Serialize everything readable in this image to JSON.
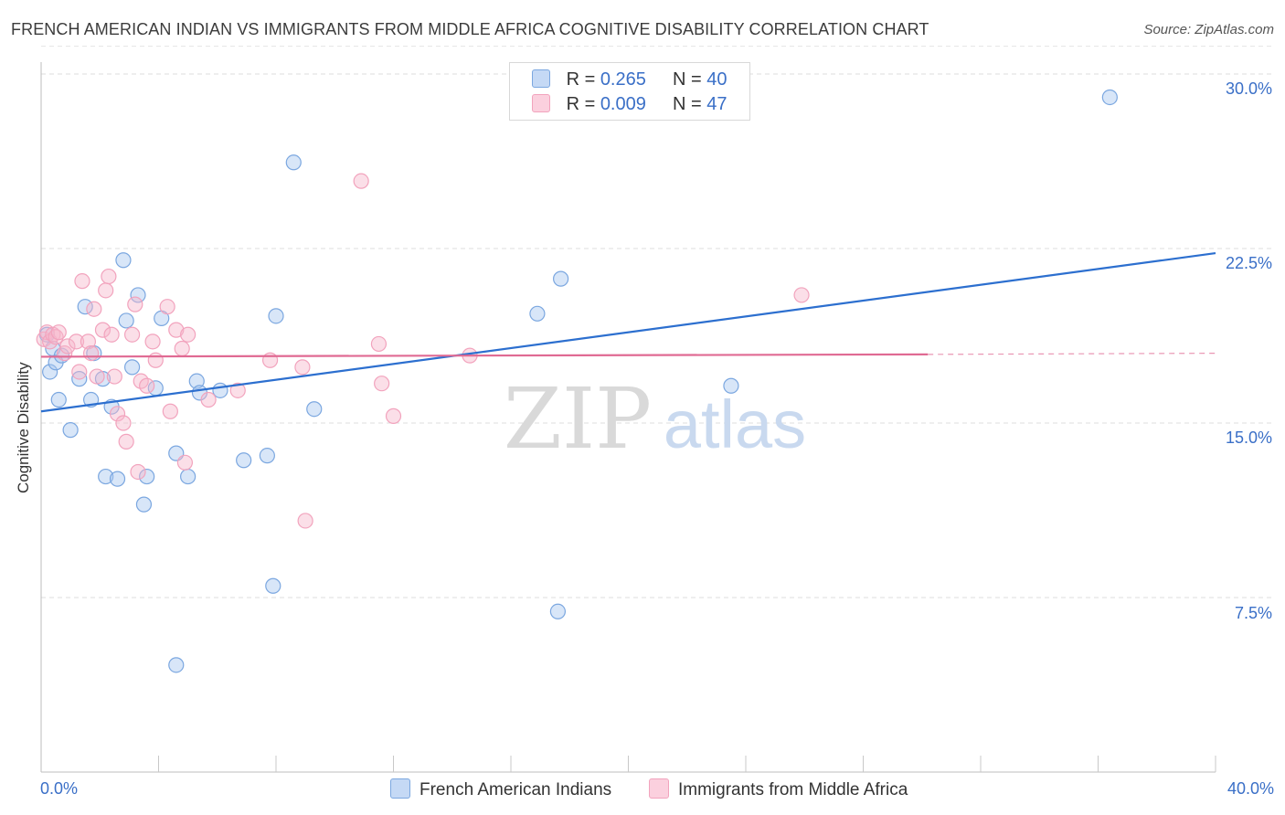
{
  "title": "FRENCH AMERICAN INDIAN VS IMMIGRANTS FROM MIDDLE AFRICA COGNITIVE DISABILITY CORRELATION CHART",
  "source": "Source: ZipAtlas.com",
  "legend": {
    "row1": {
      "r_label": "R = ",
      "r_value": "0.265",
      "n_label": "N = ",
      "n_value": "40",
      "color": "#a9c8f0"
    },
    "row2": {
      "r_label": "R = ",
      "r_value": "0.009",
      "n_label": "N = ",
      "n_value": "47",
      "color": "#f7b8cd"
    }
  },
  "bottom_legend": {
    "series1": "French American Indians",
    "series2": "Immigrants from Middle Africa"
  },
  "x_min_label": "0.0%",
  "x_max_label": "40.0%",
  "y_tick_labels": [
    "30.0%",
    "22.5%",
    "15.0%",
    "7.5%"
  ],
  "watermark": {
    "zip": "ZIP",
    "atlas": "atlas"
  },
  "chart_data": {
    "type": "scatter",
    "xlabel": "",
    "ylabel": "Cognitive Disability",
    "xlim": [
      0,
      40
    ],
    "ylim": [
      0,
      31.5
    ],
    "yticks": [
      7.5,
      15.0,
      22.5,
      30.0
    ],
    "grid": "horizontal dashed",
    "series": [
      {
        "name": "French American Indians",
        "color": "#7ba7e0",
        "line_color": "#2c6fcf",
        "trend": {
          "x": [
            0,
            40
          ],
          "y": [
            15.5,
            22.3
          ]
        },
        "points": [
          [
            0.2,
            18.8
          ],
          [
            0.4,
            18.2
          ],
          [
            0.3,
            17.2
          ],
          [
            0.5,
            17.6
          ],
          [
            0.7,
            17.9
          ],
          [
            0.6,
            16.0
          ],
          [
            1.0,
            14.7
          ],
          [
            1.3,
            16.9
          ],
          [
            1.5,
            20.0
          ],
          [
            1.7,
            16.0
          ],
          [
            1.8,
            18.0
          ],
          [
            2.1,
            16.9
          ],
          [
            2.2,
            12.7
          ],
          [
            2.4,
            15.7
          ],
          [
            2.6,
            12.6
          ],
          [
            2.8,
            22.0
          ],
          [
            2.9,
            19.4
          ],
          [
            3.1,
            17.4
          ],
          [
            3.5,
            11.5
          ],
          [
            3.3,
            20.5
          ],
          [
            3.6,
            12.7
          ],
          [
            4.1,
            19.5
          ],
          [
            3.9,
            16.5
          ],
          [
            4.6,
            13.7
          ],
          [
            5.0,
            12.7
          ],
          [
            5.3,
            16.8
          ],
          [
            5.4,
            16.3
          ],
          [
            6.1,
            16.4
          ],
          [
            4.6,
            4.6
          ],
          [
            6.9,
            13.4
          ],
          [
            7.7,
            13.6
          ],
          [
            8.0,
            19.6
          ],
          [
            8.6,
            26.2
          ],
          [
            7.9,
            8.0
          ],
          [
            9.3,
            15.6
          ],
          [
            16.9,
            19.7
          ],
          [
            17.7,
            21.2
          ],
          [
            17.6,
            6.9
          ],
          [
            23.5,
            16.6
          ],
          [
            36.4,
            29.0
          ]
        ]
      },
      {
        "name": "Immigrants from Middle Africa",
        "color": "#f2a3bd",
        "line_color": "#e06a93",
        "trend": {
          "x": [
            0,
            30.2
          ],
          "y": [
            17.85,
            17.95
          ]
        },
        "trend_dashed": {
          "x": [
            30.2,
            40
          ],
          "y": [
            17.95,
            18.0
          ]
        },
        "points": [
          [
            0.1,
            18.6
          ],
          [
            0.2,
            18.9
          ],
          [
            0.3,
            18.5
          ],
          [
            0.4,
            18.8
          ],
          [
            0.5,
            18.7
          ],
          [
            0.6,
            18.9
          ],
          [
            0.8,
            18.0
          ],
          [
            0.9,
            18.3
          ],
          [
            1.2,
            18.5
          ],
          [
            1.3,
            17.2
          ],
          [
            1.4,
            21.1
          ],
          [
            1.6,
            18.5
          ],
          [
            1.7,
            18.0
          ],
          [
            1.8,
            19.9
          ],
          [
            1.9,
            17.0
          ],
          [
            2.1,
            19.0
          ],
          [
            2.2,
            20.7
          ],
          [
            2.3,
            21.3
          ],
          [
            2.4,
            18.8
          ],
          [
            2.5,
            17.0
          ],
          [
            2.6,
            15.4
          ],
          [
            2.8,
            15.0
          ],
          [
            2.9,
            14.2
          ],
          [
            3.1,
            18.8
          ],
          [
            3.2,
            20.1
          ],
          [
            3.3,
            12.9
          ],
          [
            3.4,
            16.8
          ],
          [
            3.6,
            16.6
          ],
          [
            3.8,
            18.5
          ],
          [
            3.9,
            17.7
          ],
          [
            4.3,
            20.0
          ],
          [
            4.4,
            15.5
          ],
          [
            4.6,
            19.0
          ],
          [
            4.8,
            18.2
          ],
          [
            4.9,
            13.3
          ],
          [
            5.0,
            18.8
          ],
          [
            5.7,
            16.0
          ],
          [
            6.7,
            16.4
          ],
          [
            7.8,
            17.7
          ],
          [
            8.9,
            17.4
          ],
          [
            9.0,
            10.8
          ],
          [
            10.9,
            25.4
          ],
          [
            11.5,
            18.4
          ],
          [
            11.6,
            16.7
          ],
          [
            12.0,
            15.3
          ],
          [
            14.6,
            17.9
          ],
          [
            25.9,
            20.5
          ]
        ]
      }
    ]
  }
}
